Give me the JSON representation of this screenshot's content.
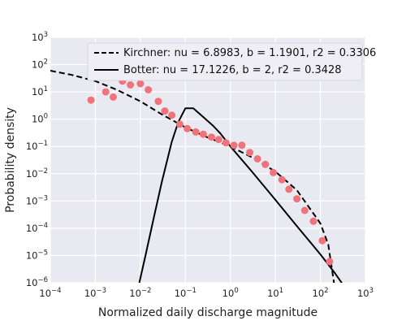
{
  "chart_data": {
    "type": "scatter",
    "title": "",
    "xlabel": "Normalized daily discharge magnitude",
    "ylabel": "Probability density",
    "xscale": "log",
    "yscale": "log",
    "xlim_exp": [
      -4,
      3
    ],
    "ylim_exp": [
      -6,
      3
    ],
    "grid": true,
    "background": "#e9e9f1",
    "legend_position": "top-right",
    "points": {
      "color": "#f0737a",
      "x": [
        0.0008,
        0.0017,
        0.0025,
        0.004,
        0.006,
        0.01,
        0.015,
        0.025,
        0.035,
        0.05,
        0.075,
        0.11,
        0.17,
        0.25,
        0.38,
        0.55,
        0.8,
        1.2,
        1.8,
        2.7,
        4.0,
        6.0,
        9.0,
        14.0,
        20.0,
        30.0,
        45.0,
        70.0,
        110.0,
        160.0
      ],
      "y": [
        5,
        10,
        6.5,
        25,
        18,
        20,
        12,
        4.5,
        2.0,
        1.4,
        0.65,
        0.45,
        0.34,
        0.28,
        0.22,
        0.18,
        0.135,
        0.11,
        0.11,
        0.06,
        0.035,
        0.022,
        0.011,
        0.006,
        0.0027,
        0.0012,
        0.00045,
        0.00018,
        3.5e-05,
        6e-06
      ]
    },
    "series": [
      {
        "name": "Kirchner: nu = 6.8983, b = 1.1901, r2 = 0.3306",
        "style": "dashed",
        "color": "#000000",
        "x": [
          0.0001,
          0.0003,
          0.001,
          0.003,
          0.01,
          0.03,
          0.1,
          0.3,
          1,
          3,
          10,
          30,
          100,
          150,
          200
        ],
        "y": [
          60,
          42,
          25,
          12,
          4.5,
          1.5,
          0.5,
          0.22,
          0.1,
          0.04,
          0.012,
          0.0025,
          0.00015,
          2.5e-05,
          1e-06
        ]
      },
      {
        "name": "Botter: nu = 17.1226, b = 2, r2 = 0.3428",
        "style": "solid",
        "color": "#000000",
        "x": [
          0.0095,
          0.013,
          0.02,
          0.03,
          0.05,
          0.07,
          0.1,
          0.15,
          0.25,
          0.4,
          0.6,
          1,
          3,
          10,
          30,
          100,
          200,
          400
        ],
        "y": [
          1e-06,
          1e-05,
          0.00025,
          0.005,
          0.15,
          0.8,
          2.5,
          2.5,
          1.2,
          0.6,
          0.3,
          0.1,
          0.012,
          0.0011,
          0.00012,
          1.1e-05,
          2.5e-06,
          5e-07
        ]
      }
    ]
  }
}
